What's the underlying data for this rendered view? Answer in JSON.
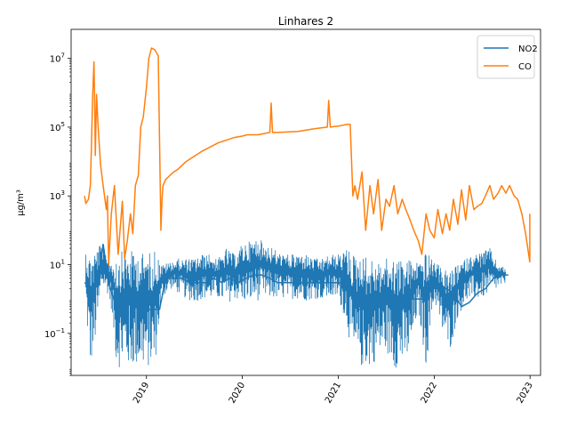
{
  "chart_data": {
    "type": "line",
    "title": "Linhares 2",
    "xlabel": "",
    "ylabel": "µg/m³",
    "yscale": "log",
    "ylim": [
      0.006,
      70000000
    ],
    "xlim": [
      "2018-03-20",
      "2023-02-10"
    ],
    "grid": false,
    "legend": "top-right",
    "x_ticks": [
      "2019",
      "2020",
      "2021",
      "2022",
      "2023"
    ],
    "y_ticks": [
      {
        "value": 0.1,
        "base": "10",
        "exp": "−1"
      },
      {
        "value": 10,
        "base": "10",
        "exp": "1"
      },
      {
        "value": 1000,
        "base": "10",
        "exp": "3"
      },
      {
        "value": 100000,
        "base": "10",
        "exp": "5"
      },
      {
        "value": 10000000,
        "base": "10",
        "exp": "7"
      }
    ],
    "series": [
      {
        "name": "NO2",
        "color": "#1f77b4",
        "band_x": [
          "2018-05-15",
          "2018-06-01",
          "2018-06-15",
          "2018-07-01",
          "2018-07-15",
          "2018-08-01",
          "2018-08-20",
          "2018-09-10",
          "2018-10-01",
          "2018-11-01",
          "2018-12-01",
          "2019-01-01",
          "2019-02-01",
          "2019-03-01",
          "2019-04-01",
          "2019-05-01",
          "2019-06-01",
          "2019-07-01",
          "2019-08-01",
          "2019-09-01",
          "2019-10-01",
          "2019-11-01",
          "2019-12-01",
          "2020-01-01",
          "2020-02-01",
          "2020-03-01",
          "2020-04-01",
          "2020-05-01",
          "2020-06-01",
          "2020-07-01",
          "2020-08-01",
          "2020-09-01",
          "2020-10-01",
          "2020-11-01",
          "2020-12-01",
          "2021-01-01",
          "2021-02-01",
          "2021-03-01",
          "2021-04-01",
          "2021-05-01",
          "2021-06-01",
          "2021-07-01",
          "2021-08-01",
          "2021-09-01",
          "2021-10-01",
          "2021-11-01",
          "2021-12-01",
          "2022-01-01",
          "2022-02-01",
          "2022-03-01",
          "2022-04-01",
          "2022-05-01",
          "2022-06-01",
          "2022-07-01",
          "2022-08-01",
          "2022-09-01",
          "2022-10-01"
        ],
        "band_low": [
          0.5,
          0.01,
          0.03,
          0.2,
          2,
          2,
          0.5,
          0.01,
          0.01,
          0.01,
          0.01,
          0.01,
          0.01,
          1,
          2,
          1.5,
          1,
          0.8,
          1,
          1,
          1,
          0.7,
          1,
          0.8,
          0.8,
          0.9,
          1,
          1,
          1,
          1,
          1,
          0.9,
          1,
          1,
          1,
          1,
          0.2,
          0.01,
          0.01,
          0.01,
          0.02,
          0.03,
          0.01,
          0.01,
          0.02,
          0.5,
          0.01,
          1,
          0.1,
          0.03,
          0.3,
          0.8,
          1,
          1,
          1.5,
          2,
          3
        ],
        "band_high": [
          30,
          20,
          25,
          40,
          40,
          20,
          15,
          20,
          25,
          25,
          25,
          20,
          30,
          10,
          12,
          15,
          15,
          15,
          20,
          20,
          15,
          30,
          20,
          40,
          50,
          60,
          40,
          30,
          20,
          20,
          20,
          20,
          15,
          15,
          20,
          20,
          30,
          20,
          20,
          15,
          12,
          15,
          15,
          15,
          15,
          12,
          25,
          12,
          8,
          6,
          10,
          15,
          20,
          25,
          30,
          10,
          8
        ],
        "line_x": [
          "2018-05-10",
          "2018-06-15",
          "2018-07-01",
          "2018-07-20",
          "2018-08-10",
          "2018-09-10",
          "2018-10-15",
          "2018-11-20",
          "2018-12-20",
          "2019-01-20",
          "2019-02-20",
          "2019-03-15",
          "2019-04-15",
          "2019-05-15",
          "2019-06-15",
          "2019-07-15",
          "2019-08-15",
          "2019-09-15",
          "2019-10-15",
          "2019-11-15",
          "2019-12-15",
          "2020-01-15",
          "2020-02-15",
          "2020-03-15",
          "2020-04-15",
          "2020-05-15",
          "2020-06-15",
          "2020-07-15",
          "2020-08-15",
          "2020-09-15",
          "2020-10-15",
          "2020-11-15",
          "2020-12-15",
          "2021-01-15",
          "2021-02-15",
          "2021-03-15",
          "2021-04-15",
          "2021-05-15",
          "2021-06-15",
          "2021-07-15",
          "2021-08-15",
          "2021-09-15",
          "2021-10-15",
          "2021-11-15",
          "2021-12-15",
          "2022-01-15",
          "2022-02-15",
          "2022-03-15",
          "2022-04-15",
          "2022-05-15",
          "2022-06-15",
          "2022-07-15",
          "2022-08-15",
          "2022-09-15",
          "2022-10-10"
        ],
        "line_y": [
          3,
          2,
          5,
          40,
          3,
          0.5,
          1,
          0.8,
          0.5,
          0.5,
          0.5,
          4,
          4,
          4,
          3,
          3,
          3,
          4,
          3,
          4,
          3,
          4,
          5,
          5,
          4,
          3,
          3,
          3,
          3,
          3,
          3,
          3,
          3,
          3,
          3,
          0.5,
          0.5,
          0.5,
          1,
          1,
          1,
          1,
          1,
          1,
          2,
          3,
          2,
          1.5,
          0.6,
          0.8,
          1.5,
          2,
          4,
          5,
          5
        ]
      },
      {
        "name": "CO",
        "color": "#ff7f0e",
        "x": [
          "2018-05-10",
          "2018-05-15",
          "2018-05-25",
          "2018-06-01",
          "2018-06-05",
          "2018-06-10",
          "2018-06-15",
          "2018-06-18",
          "2018-06-20",
          "2018-06-25",
          "2018-07-01",
          "2018-07-10",
          "2018-07-20",
          "2018-08-01",
          "2018-08-05",
          "2018-08-10",
          "2018-08-20",
          "2018-09-01",
          "2018-09-15",
          "2018-10-01",
          "2018-10-10",
          "2018-10-20",
          "2018-11-01",
          "2018-11-10",
          "2018-11-20",
          "2018-12-01",
          "2018-12-10",
          "2018-12-20",
          "2019-01-01",
          "2019-01-10",
          "2019-01-20",
          "2019-02-01",
          "2019-02-15",
          "2019-02-25",
          "2019-03-01",
          "2019-03-05",
          "2019-03-15",
          "2019-04-01",
          "2019-04-15",
          "2019-05-01",
          "2019-06-01",
          "2019-08-01",
          "2019-10-01",
          "2019-12-01",
          "2020-01-01",
          "2020-01-20",
          "2020-03-01",
          "2020-04-15",
          "2020-04-20",
          "2020-04-25",
          "2020-05-15",
          "2020-08-01",
          "2020-10-01",
          "2020-11-20",
          "2020-11-25",
          "2020-12-01",
          "2021-01-10",
          "2021-02-01",
          "2021-02-15",
          "2021-02-25",
          "2021-03-05",
          "2021-03-15",
          "2021-04-01",
          "2021-04-15",
          "2021-05-01",
          "2021-05-15",
          "2021-06-01",
          "2021-06-15",
          "2021-07-01",
          "2021-07-15",
          "2021-08-01",
          "2021-08-15",
          "2021-09-01",
          "2021-09-15",
          "2021-10-01",
          "2021-10-15",
          "2021-11-01",
          "2021-11-15",
          "2021-12-01",
          "2021-12-15",
          "2022-01-01",
          "2022-01-15",
          "2022-02-01",
          "2022-02-15",
          "2022-03-01",
          "2022-03-15",
          "2022-04-01",
          "2022-04-15",
          "2022-05-01",
          "2022-05-15",
          "2022-06-01",
          "2022-06-15",
          "2022-07-01",
          "2022-07-15",
          "2022-08-01",
          "2022-08-15",
          "2022-09-01",
          "2022-09-15",
          "2022-10-01",
          "2022-10-15",
          "2022-11-01",
          "2022-11-15",
          "2022-12-01",
          "2022-12-15",
          "2022-12-31",
          "2022-12-31"
        ],
        "y": [
          1000,
          600,
          800,
          2000,
          20000,
          800000,
          8000000,
          300000,
          15000,
          900000,
          100000,
          8000,
          2000,
          400,
          1000,
          10,
          300,
          2000,
          20,
          700,
          15,
          50,
          300,
          80,
          2000,
          4000,
          100000,
          200000,
          1500000,
          10000000,
          20000000,
          18000000,
          12000000,
          100,
          800,
          2000,
          3000,
          4000,
          5000,
          6000,
          10000,
          20000,
          35000,
          50000,
          55000,
          60000,
          60000,
          70000,
          500000,
          70000,
          70000,
          75000,
          90000,
          100000,
          600000,
          100000,
          110000,
          120000,
          120000,
          1000,
          2000,
          800,
          5000,
          100,
          2000,
          300,
          3000,
          100,
          800,
          500,
          2000,
          300,
          800,
          400,
          200,
          100,
          50,
          20,
          300,
          100,
          60,
          400,
          80,
          300,
          100,
          800,
          150,
          1500,
          200,
          2000,
          400,
          500,
          600,
          1000,
          2000,
          800,
          1200,
          2000,
          1200,
          2000,
          1000,
          800,
          300,
          80,
          12,
          300
        ]
      }
    ]
  }
}
